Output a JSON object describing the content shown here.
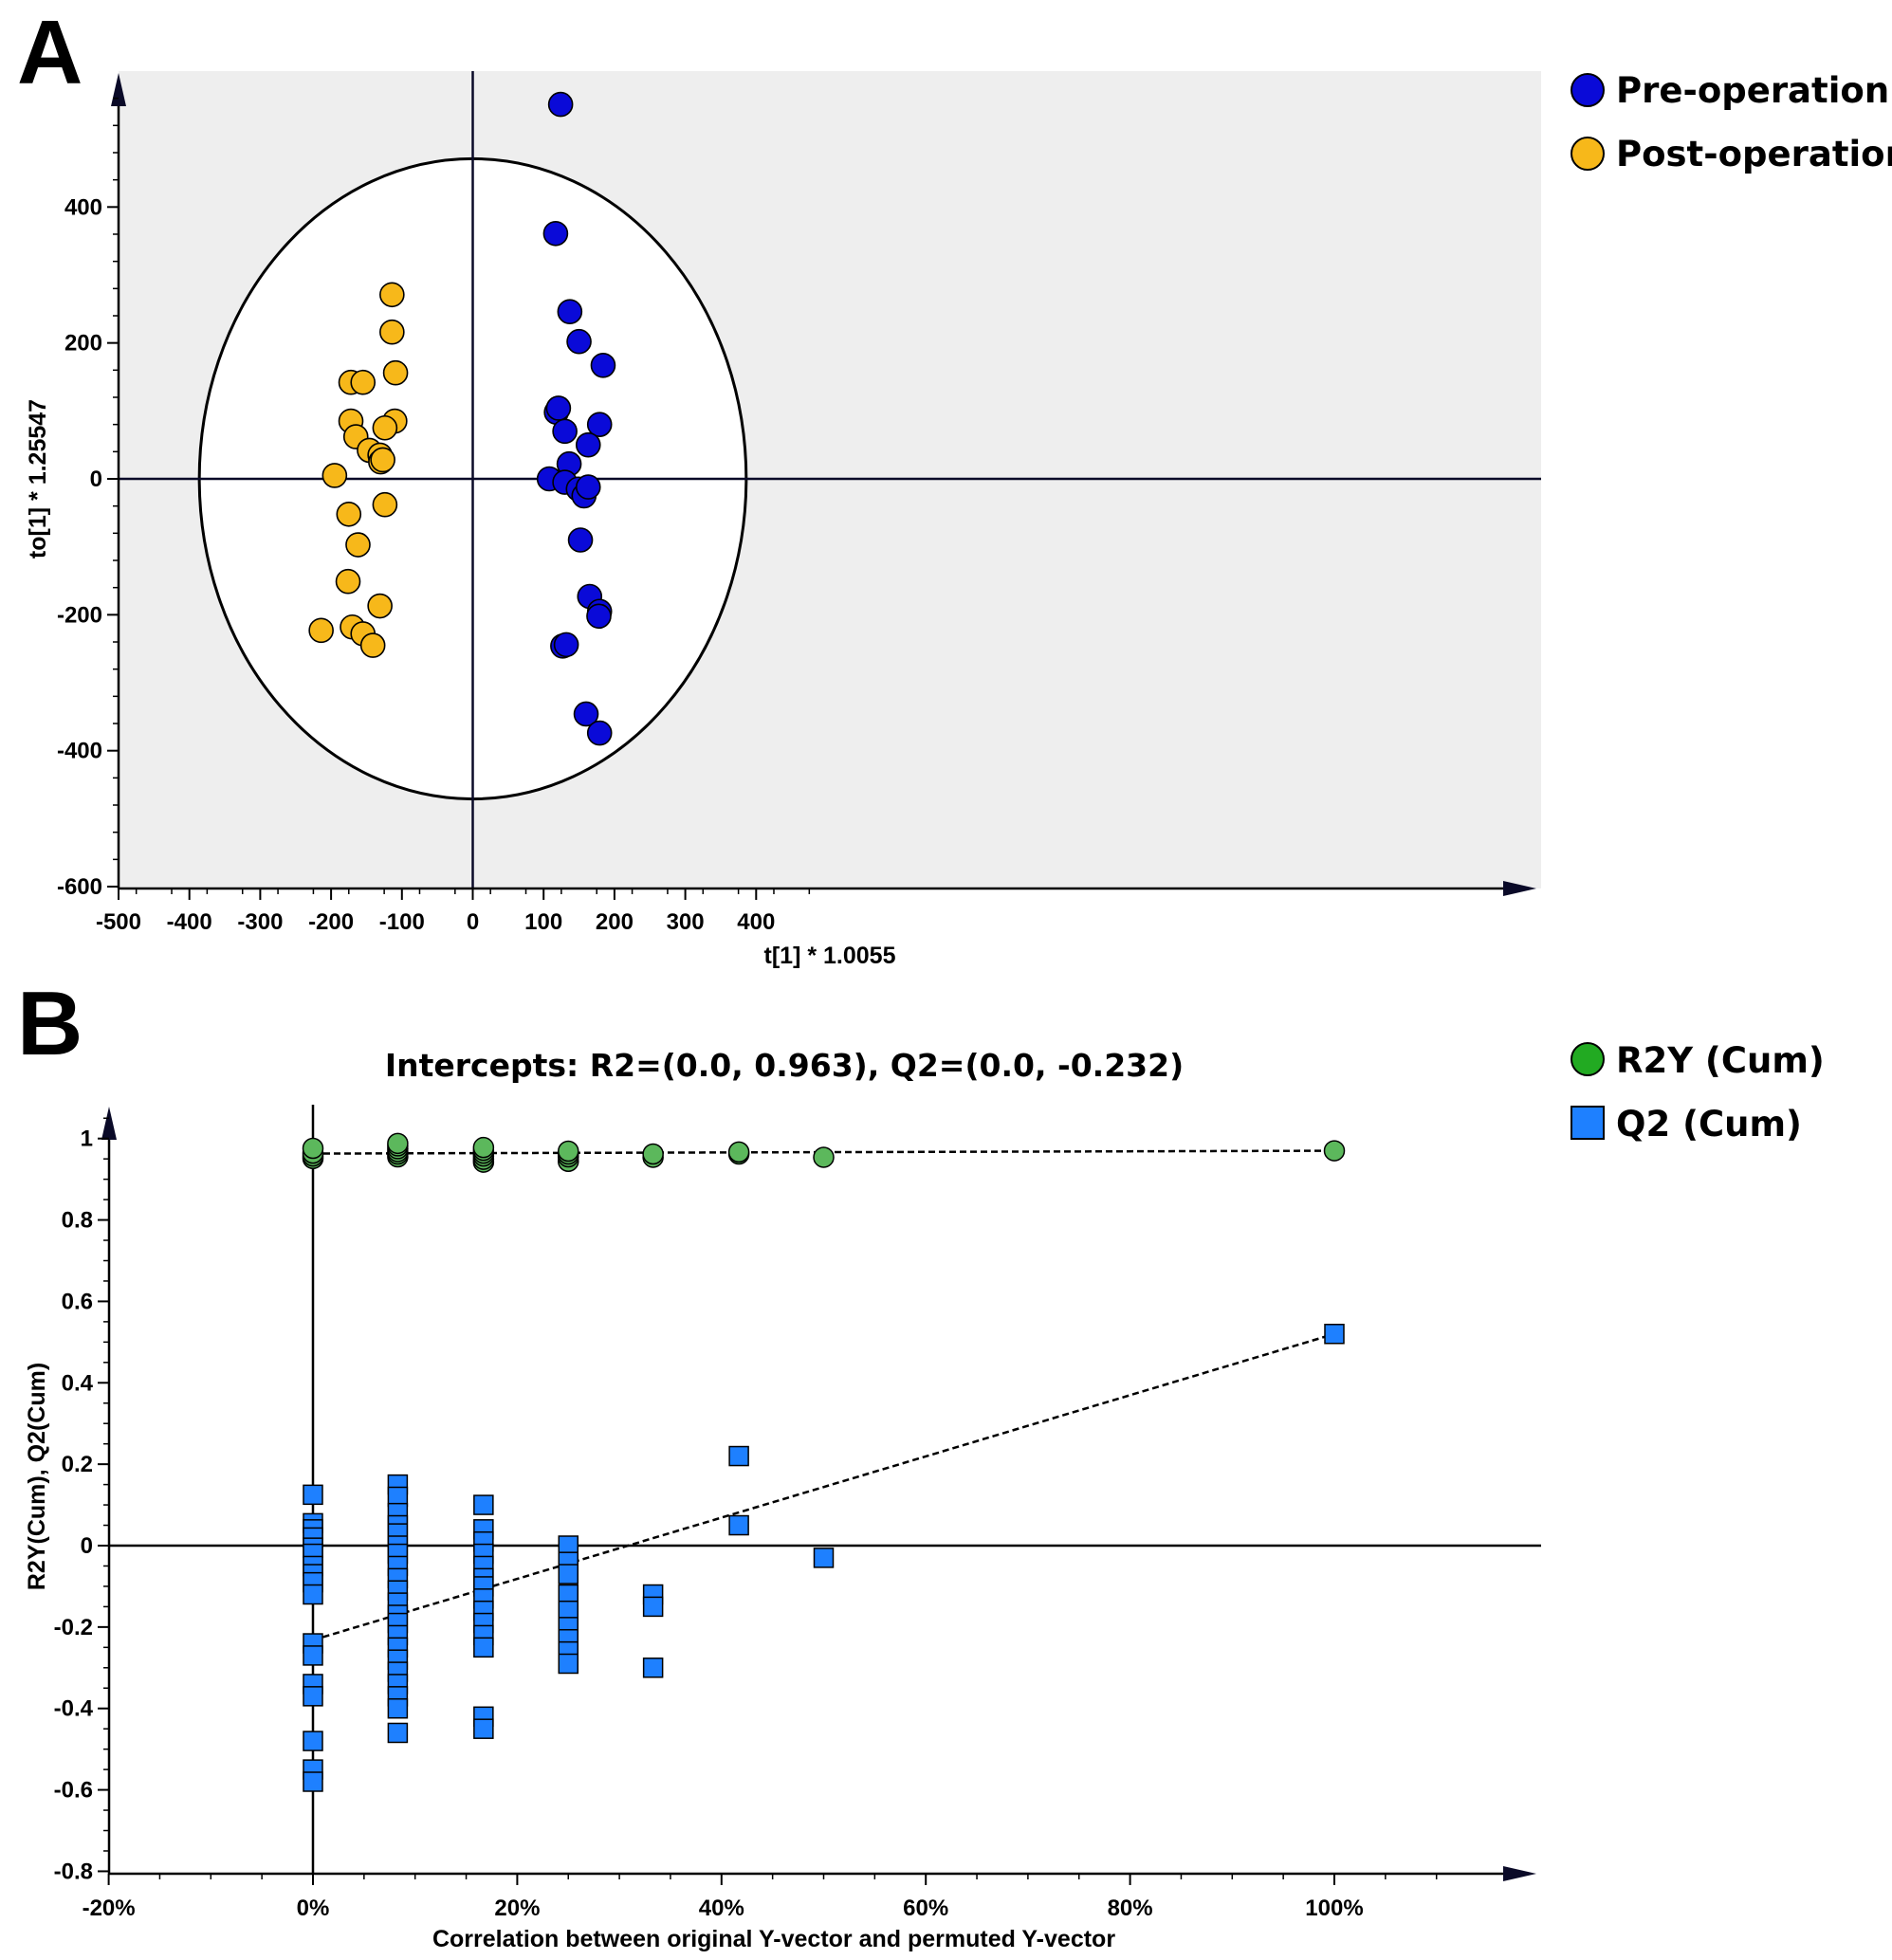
{
  "figure": {
    "panel_a_letter": "A",
    "panel_b_letter": "B"
  },
  "chart_data": [
    {
      "type": "scatter",
      "panel": "A",
      "title": "",
      "xlabel": "t[1] * 1.0055",
      "ylabel": "to[1] * 1.25547",
      "xlim": [
        -500,
        500
      ],
      "ylim": [
        -600,
        600
      ],
      "xticks": [
        "-500",
        "-400",
        "-300",
        "-200",
        "-100",
        "0",
        "100",
        "200",
        "300",
        "400"
      ],
      "yticks": [
        "400",
        "200",
        "0",
        "-200",
        "-400",
        "-600"
      ],
      "ellipse": {
        "center": [
          0,
          0
        ],
        "rx": 386,
        "ry": 471
      },
      "legend_position": "top-right",
      "colors": {
        "Pre-operation": "#0a0ad8",
        "Post-operation": "#f7b81a",
        "background": "#eeeeee"
      },
      "series": [
        {
          "name": "Pre-operation",
          "points": [
            [
              124,
              551
            ],
            [
              117,
              361
            ],
            [
              137,
              246
            ],
            [
              150,
              202
            ],
            [
              184,
              167
            ],
            [
              118,
              98
            ],
            [
              121,
              104
            ],
            [
              130,
              70
            ],
            [
              179,
              80
            ],
            [
              163,
              50
            ],
            [
              136,
              22
            ],
            [
              108,
              0
            ],
            [
              130,
              -5
            ],
            [
              149,
              -15
            ],
            [
              157,
              -25
            ],
            [
              163,
              -12
            ],
            [
              152,
              -90
            ],
            [
              165,
              -173
            ],
            [
              179,
              -195
            ],
            [
              178,
              -202
            ],
            [
              127,
              -246
            ],
            [
              132,
              -244
            ],
            [
              160,
              -346
            ],
            [
              179,
              -374
            ]
          ]
        },
        {
          "name": "Post-operation",
          "points": [
            [
              -114,
              271
            ],
            [
              -114,
              216
            ],
            [
              -109,
              156
            ],
            [
              -172,
              142
            ],
            [
              -155,
              142
            ],
            [
              -110,
              85
            ],
            [
              -172,
              85
            ],
            [
              -124,
              75
            ],
            [
              -165,
              62
            ],
            [
              -146,
              42
            ],
            [
              -131,
              35
            ],
            [
              -130,
              25
            ],
            [
              -127,
              28
            ],
            [
              -195,
              5
            ],
            [
              -124,
              -38
            ],
            [
              -175,
              -52
            ],
            [
              -162,
              -97
            ],
            [
              -176,
              -151
            ],
            [
              -131,
              -187
            ],
            [
              -214,
              -223
            ],
            [
              -170,
              -218
            ],
            [
              -155,
              -228
            ],
            [
              -141,
              -245
            ]
          ]
        }
      ]
    },
    {
      "type": "scatter",
      "panel": "B",
      "title": "Intercepts: R2=(0.0, 0.963), Q2=(0.0, -0.232)",
      "xlabel": "Correlation between original Y-vector and permuted Y-vector",
      "ylabel": "R2Y(Cum), Q2(Cum)",
      "xlim": [
        -0.2,
        1.15
      ],
      "ylim": [
        -0.8,
        1.1
      ],
      "xticks": [
        "-20%",
        "0%",
        "20%",
        "40%",
        "60%",
        "80%",
        "100%"
      ],
      "yticks": [
        "1",
        "0.8",
        "0.6",
        "0.4",
        "0.2",
        "0",
        "-0.2",
        "-0.4",
        "-0.6",
        "-0.8"
      ],
      "legend_position": "top-right",
      "colors": {
        "R2Y (Cum)": "#22aa22",
        "Q2 (Cum)": "#1e80ff",
        "r2y_marker": "#5cb85c"
      },
      "series": [
        {
          "name": "R2Y (Cum)",
          "marker": "circle",
          "regression_line": {
            "intercept": 0.963,
            "x": [
              0,
              1.0
            ]
          },
          "points": [
            [
              0,
              0.951
            ],
            [
              0,
              0.957
            ],
            [
              0,
              0.964
            ],
            [
              0,
              0.976
            ],
            [
              0.083,
              0.955
            ],
            [
              0.083,
              0.962
            ],
            [
              0.083,
              0.968
            ],
            [
              0.083,
              0.975
            ],
            [
              0.083,
              0.982
            ],
            [
              0.083,
              0.988
            ],
            [
              0.167,
              0.942
            ],
            [
              0.167,
              0.949
            ],
            [
              0.167,
              0.957
            ],
            [
              0.167,
              0.964
            ],
            [
              0.167,
              0.971
            ],
            [
              0.167,
              0.978
            ],
            [
              0.25,
              0.944
            ],
            [
              0.25,
              0.955
            ],
            [
              0.25,
              0.962
            ],
            [
              0.25,
              0.969
            ],
            [
              0.333,
              0.954
            ],
            [
              0.333,
              0.962
            ],
            [
              0.417,
              0.962
            ],
            [
              0.417,
              0.967
            ],
            [
              0.5,
              0.954
            ],
            [
              1.0,
              0.97
            ]
          ]
        },
        {
          "name": "Q2 (Cum)",
          "marker": "square",
          "regression_line": {
            "intercept": -0.232,
            "x": [
              0,
              1.0
            ]
          },
          "points": [
            [
              0,
              0.125
            ],
            [
              0,
              0.055
            ],
            [
              0,
              0.04
            ],
            [
              0,
              0.02
            ],
            [
              0,
              -0.005
            ],
            [
              0,
              -0.02
            ],
            [
              0,
              -0.05
            ],
            [
              0,
              -0.07
            ],
            [
              0,
              -0.09
            ],
            [
              0,
              -0.12
            ],
            [
              0,
              -0.24
            ],
            [
              0,
              -0.27
            ],
            [
              0,
              -0.34
            ],
            [
              0,
              -0.37
            ],
            [
              0,
              -0.48
            ],
            [
              0,
              -0.55
            ],
            [
              0,
              -0.58
            ],
            [
              0.083,
              0.15
            ],
            [
              0.083,
              0.12
            ],
            [
              0.083,
              0.08
            ],
            [
              0.083,
              0.05
            ],
            [
              0.083,
              0.03
            ],
            [
              0.083,
              0.0
            ],
            [
              0.083,
              -0.02
            ],
            [
              0.083,
              -0.05
            ],
            [
              0.083,
              -0.08
            ],
            [
              0.083,
              -0.11
            ],
            [
              0.083,
              -0.14
            ],
            [
              0.083,
              -0.17
            ],
            [
              0.083,
              -0.19
            ],
            [
              0.083,
              -0.22
            ],
            [
              0.083,
              -0.25
            ],
            [
              0.083,
              -0.28
            ],
            [
              0.083,
              -0.31
            ],
            [
              0.083,
              -0.34
            ],
            [
              0.083,
              -0.37
            ],
            [
              0.083,
              -0.4
            ],
            [
              0.083,
              -0.46
            ],
            [
              0.167,
              0.1
            ],
            [
              0.167,
              0.04
            ],
            [
              0.167,
              0.01
            ],
            [
              0.167,
              -0.02
            ],
            [
              0.167,
              -0.05
            ],
            [
              0.167,
              -0.08
            ],
            [
              0.167,
              -0.1
            ],
            [
              0.167,
              -0.13
            ],
            [
              0.167,
              -0.16
            ],
            [
              0.167,
              -0.19
            ],
            [
              0.167,
              -0.22
            ],
            [
              0.167,
              -0.25
            ],
            [
              0.167,
              -0.42
            ],
            [
              0.167,
              -0.45
            ],
            [
              0.25,
              0.0
            ],
            [
              0.25,
              -0.04
            ],
            [
              0.25,
              -0.07
            ],
            [
              0.25,
              -0.12
            ],
            [
              0.25,
              -0.16
            ],
            [
              0.25,
              -0.2
            ],
            [
              0.25,
              -0.23
            ],
            [
              0.25,
              -0.26
            ],
            [
              0.25,
              -0.29
            ],
            [
              0.333,
              -0.12
            ],
            [
              0.333,
              -0.15
            ],
            [
              0.333,
              -0.3
            ],
            [
              0.417,
              0.22
            ],
            [
              0.417,
              0.05
            ],
            [
              0.5,
              -0.03
            ],
            [
              1.0,
              0.52
            ]
          ]
        }
      ]
    }
  ]
}
